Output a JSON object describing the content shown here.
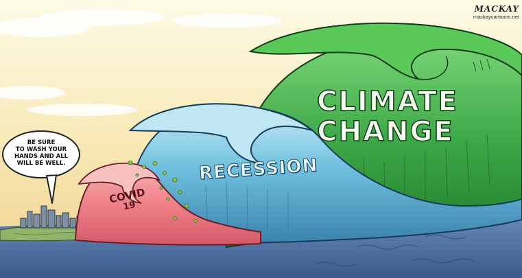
{
  "signature": {
    "name": "MACKAY",
    "url": "mackaycartoons.net"
  },
  "speech_bubble": {
    "lines": [
      "BE SURE",
      "TO WASH YOUR",
      "HANDS AND ALL",
      "WILL BE WELL."
    ]
  },
  "waves": {
    "small": {
      "label_line1": "COVID",
      "label_line2": "19",
      "color": "#f08c8c"
    },
    "medium": {
      "label": "RECESSION",
      "color": "#5fb5d8"
    },
    "large": {
      "label_line1": "CLIMATE",
      "label_line2": "CHANGE",
      "color": "#2f9a3a"
    }
  },
  "colors": {
    "sky_top": "#fbf6d2",
    "sky_bottom": "#f2d79a",
    "sea": "#4a6da0",
    "land": "#8fb46a"
  }
}
